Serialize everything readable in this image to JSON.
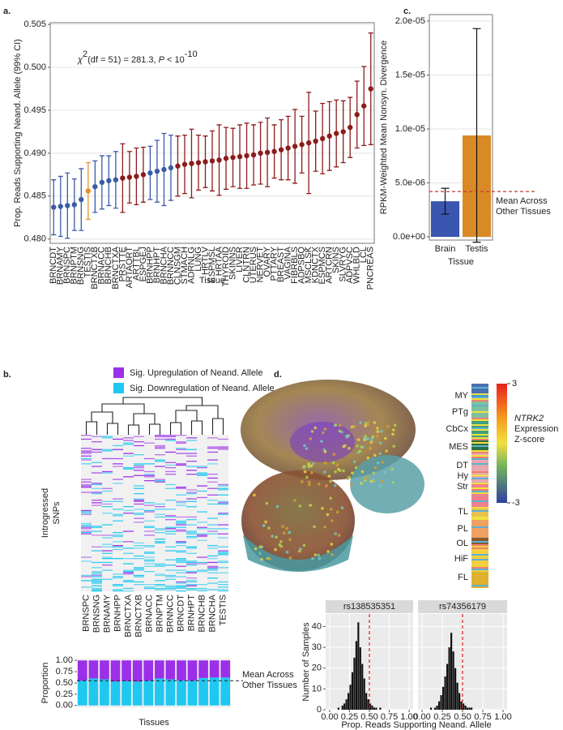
{
  "chart_data": [
    {
      "type": "dot",
      "panel": "a.",
      "categories": [
        "BRNCDT",
        "BRNAMY",
        "BRNSPC",
        "BRNPTM",
        "BRNSNG",
        "TESTIS",
        "BRNCTXB",
        "BRNACC",
        "BRNCHB",
        "BRNCTXA",
        "PRSTTE",
        "ARTAORT",
        "ARTTBL",
        "ESPGEJ",
        "BRNHPP",
        "BRNHPT",
        "BRNCHA",
        "BRNNCC",
        "CLNSGM",
        "STMACH",
        "ADRNLG",
        "LUNG",
        "HRTLV",
        "ESPMSL",
        "HRTAA",
        "THYROID",
        "SKINNS",
        "LIVER",
        "CLNTRN",
        "UTERUS",
        "NERVET",
        "OVARY",
        "PTTARY",
        "BREAST",
        "VAGINA",
        "FIBRBLS",
        "ADPSBQ",
        "MSCLSK",
        "KDNCTX",
        "ESPMCS",
        "ARTCRN",
        "SKINS",
        "SLVRYG",
        "ADPVSC",
        "WHLBLD",
        "LCL",
        "PNCREAS"
      ],
      "values": [
        0.4837,
        0.4838,
        0.4839,
        0.484,
        0.4846,
        0.4856,
        0.4861,
        0.4866,
        0.4868,
        0.4869,
        0.4871,
        0.4872,
        0.4873,
        0.4875,
        0.4877,
        0.4879,
        0.4881,
        0.4883,
        0.4885,
        0.4887,
        0.4888,
        0.4889,
        0.489,
        0.4891,
        0.4892,
        0.4894,
        0.4895,
        0.4896,
        0.4897,
        0.4898,
        0.49,
        0.4901,
        0.4902,
        0.4904,
        0.4906,
        0.4908,
        0.491,
        0.4912,
        0.4914,
        0.4917,
        0.492,
        0.4923,
        0.4925,
        0.493,
        0.4945,
        0.4955,
        0.4975
      ],
      "errors": [
        0.0032,
        0.0035,
        0.0038,
        0.003,
        0.0036,
        0.0033,
        0.003,
        0.0031,
        0.0029,
        0.0033,
        0.004,
        0.003,
        0.0033,
        0.0032,
        0.0031,
        0.0036,
        0.0042,
        0.0038,
        0.0035,
        0.0034,
        0.004,
        0.0032,
        0.003,
        0.0035,
        0.0041,
        0.0036,
        0.0034,
        0.0037,
        0.0038,
        0.0035,
        0.0036,
        0.004,
        0.0031,
        0.0035,
        0.0037,
        0.0043,
        0.0033,
        0.0059,
        0.0035,
        0.0041,
        0.004,
        0.0039,
        0.0036,
        0.0035,
        0.0039,
        0.0046,
        0.0065
      ],
      "colors": [
        "#3b5ba5",
        "#3b5ba5",
        "#3b5ba5",
        "#3b5ba5",
        "#3b5ba5",
        "#e3922b",
        "#3b5ba5",
        "#3b5ba5",
        "#3b5ba5",
        "#3b5ba5",
        "#8c1c1c",
        "#8c1c1c",
        "#8c1c1c",
        "#8c1c1c",
        "#3b5ba5",
        "#3b5ba5",
        "#3b5ba5",
        "#3b5ba5",
        "#8c1c1c",
        "#8c1c1c",
        "#8c1c1c",
        "#8c1c1c",
        "#8c1c1c",
        "#8c1c1c",
        "#8c1c1c",
        "#8c1c1c",
        "#8c1c1c",
        "#8c1c1c",
        "#8c1c1c",
        "#8c1c1c",
        "#8c1c1c",
        "#8c1c1c",
        "#8c1c1c",
        "#8c1c1c",
        "#8c1c1c",
        "#8c1c1c",
        "#8c1c1c",
        "#8c1c1c",
        "#8c1c1c",
        "#8c1c1c",
        "#8c1c1c",
        "#8c1c1c",
        "#8c1c1c",
        "#8c1c1c",
        "#8c1c1c",
        "#8c1c1c",
        "#8c1c1c"
      ],
      "ylim": [
        0.4795,
        0.5052
      ],
      "yticks": [
        {
          "value": 0.48,
          "label": "0.480"
        },
        {
          "value": 0.485,
          "label": "0.485"
        },
        {
          "value": 0.49,
          "label": "0.490"
        },
        {
          "value": 0.495,
          "label": "0.495"
        },
        {
          "value": 0.5,
          "label": "0.500"
        },
        {
          "value": 0.505,
          "label": "0.505"
        }
      ],
      "x_label": "Tissue",
      "y_label": "Prop. Reads Supporting Neand. Allele (99% CI)",
      "annotation": {
        "chi": "χ",
        "chi_exp": "2",
        "text": "(df = 51) = 281.3, ",
        "p": "P",
        "rest": " < 10",
        "exp": "-10"
      }
    },
    {
      "type": "bar",
      "panel": "c.",
      "categories": [
        "Brain",
        "Testis"
      ],
      "values": [
        3.3e-06,
        9.4e-06
      ],
      "errors": [
        1.2e-06,
        9.9e-06
      ],
      "colors": [
        "#3a56b0",
        "#d98a27"
      ],
      "ylim": [
        -3e-07,
        2.06e-05
      ],
      "yticks": [
        {
          "value": 0,
          "label": "0.0e+00"
        },
        {
          "value": 5e-06,
          "label": "5.0e-06"
        },
        {
          "value": 1e-05,
          "label": "1.0e-05"
        },
        {
          "value": 1.5e-05,
          "label": "1.5e-05"
        },
        {
          "value": 2e-05,
          "label": "2.0e-05"
        }
      ],
      "hline": 4.2e-06,
      "hline_color": "#c0392b",
      "hline_label": [
        "Mean Across",
        "Other Tissues"
      ],
      "x_label": "Tissue",
      "y_label": "RPKM-Weighted Mean Nonsyn. Divergence"
    },
    {
      "type": "heatmap",
      "panel": "b.",
      "legend": [
        {
          "name": "Sig. Upregulation of Neand. Allele",
          "color": "#9b30e8"
        },
        {
          "name": "Sig. Downregulation of Neand. Allele",
          "color": "#1ec8f0"
        }
      ],
      "columns": [
        "BRNSPC",
        "BRNSNG",
        "BRNAMY",
        "BRNHPP",
        "BRNCTXA",
        "BRNCTXB",
        "BRNACC",
        "BRNPTM",
        "BRNNCC",
        "BRNCDT",
        "BRNHPT",
        "BRNCHB",
        "BRNCHA",
        "TESTIS"
      ],
      "y_label": [
        "Introgressed",
        "SNPs"
      ]
    },
    {
      "type": "stacked_bar",
      "categories": [
        "BRNSPC",
        "BRNSNG",
        "BRNAMY",
        "BRNHPP",
        "BRNCTXA",
        "BRNCTXB",
        "BRNACC",
        "BRNPTM",
        "BRNNCC",
        "BRNCDT",
        "BRNHPT",
        "BRNCHB",
        "BRNCHA",
        "TESTIS"
      ],
      "series": [
        {
          "color": "#1ec8f0",
          "values": [
            0.55,
            0.6,
            0.58,
            0.53,
            0.54,
            0.53,
            0.55,
            0.6,
            0.58,
            0.56,
            0.55,
            0.61,
            0.62,
            0.62
          ]
        },
        {
          "color": "#9b30e8",
          "values": [
            0.45,
            0.4,
            0.42,
            0.47,
            0.46,
            0.47,
            0.45,
            0.4,
            0.42,
            0.44,
            0.45,
            0.39,
            0.38,
            0.38
          ]
        }
      ],
      "ylim": [
        -0.04,
        1.04
      ],
      "yticks": [
        {
          "value": 0,
          "label": "0.00"
        },
        {
          "value": 0.25,
          "label": "0.25"
        },
        {
          "value": 0.5,
          "label": "0.50"
        },
        {
          "value": 0.75,
          "label": "0.75"
        },
        {
          "value": 1,
          "label": "1.00"
        }
      ],
      "hline": 0.55,
      "hline_label": [
        "Mean Across",
        "Other Tissues"
      ],
      "x_label": "Tissues",
      "y_label": "Proportion"
    },
    {
      "type": "image",
      "panel": "d.",
      "regions": [
        "MY",
        "PTg",
        "CbCx",
        "MES",
        "DT",
        "Hy",
        "Str",
        "TL",
        "PL",
        "OL",
        "HiF",
        "FL"
      ],
      "colorbar_lim": [
        -3,
        3
      ],
      "colorbar_ticks": [
        3,
        -3
      ],
      "colorbar_label": [
        "NTRK2",
        "Expression",
        "Z-score"
      ]
    },
    {
      "type": "histogram",
      "bins": [
        0.1,
        0.125,
        0.15,
        0.175,
        0.2,
        0.225,
        0.25,
        0.275,
        0.3,
        0.325,
        0.35,
        0.375,
        0.4,
        0.425,
        0.45,
        0.475,
        0.5,
        0.525,
        0.55,
        0.575,
        0.6,
        0.625,
        0.65,
        0.675,
        0.7,
        0.725
      ],
      "facets": [
        {
          "title": "rs138535351",
          "counts": [
            1,
            0,
            2,
            3,
            5,
            8,
            12,
            18,
            25,
            33,
            42,
            30,
            22,
            15,
            8,
            5,
            3,
            2,
            1,
            1,
            0,
            1,
            0,
            0,
            0
          ]
        },
        {
          "title": "rs74356179",
          "counts": [
            1,
            0,
            1,
            2,
            4,
            7,
            11,
            16,
            22,
            30,
            37,
            28,
            20,
            13,
            8,
            4,
            3,
            2,
            1,
            1,
            1,
            0,
            0,
            0,
            0
          ]
        }
      ],
      "color": "#111111",
      "xlim": [
        -0.05,
        1.05
      ],
      "xticks": [
        {
          "value": 0,
          "label": "0.00"
        },
        {
          "value": 0.25,
          "label": "0.25"
        },
        {
          "value": 0.5,
          "label": "0.50"
        },
        {
          "value": 0.75,
          "label": "0.75"
        },
        {
          "value": 1,
          "label": "1.00"
        }
      ],
      "ylim": [
        0,
        46
      ],
      "yticks": [
        0,
        10,
        20,
        30,
        40
      ],
      "vline": 0.5,
      "vline_color": "#e02020",
      "x_label": "Prop. Reads Supporting Neand. Allele",
      "y_label": "Number of Samples"
    }
  ]
}
